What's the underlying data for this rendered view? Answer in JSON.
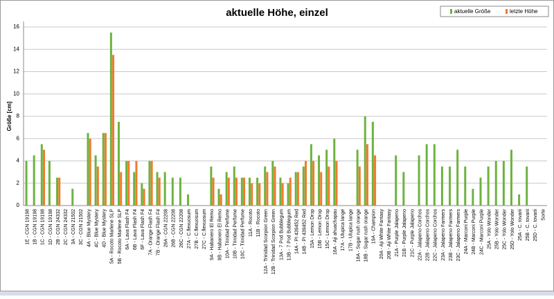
{
  "chart_data": {
    "type": "bar",
    "title": "aktuelle Höhe, einzel",
    "y_label": "Größe [cm]",
    "categories": [
      "1E - CGN 19198",
      "1B - CGN 19198",
      "1C - CGN 19198",
      "1D - CGN 19198",
      "2B - CGN 24332",
      "2C - CGN 24332",
      "3A - CGN 21502",
      "3C - CGN 21502",
      "4A - Blue Mystery",
      "4C - Blue Mystery",
      "4D - Blue Mystery",
      "5A - Rocoto Marlene SLP",
      "5B - Rocoto Marlene SLP",
      "6A - Lava Flash F4",
      "6B - Lava Flash F4",
      "6F - Lava Flash F4",
      "7A - Orange Flash F4",
      "7B - Orange Flash F4",
      "26A - CGN 22208",
      "26B - CGN 22208",
      "26C - CGN 22208",
      "27A - C.flexuosum",
      "27B - C.flexuosum",
      "27C - C.flexuosum",
      "9A - Habanero El Remo",
      "9B - Habanero El Remo",
      "10A - Trinidad Perfume",
      "10B - Trinidad Perfume",
      "10C - Trinidad Perfume",
      "11A - Rocoto",
      "11B - Rocoto",
      "12A - Trinidad Scorpion Green",
      "12B - Trinidad Scorpion Green",
      "13A - 7 Pod Bubblegum",
      "13B - 7 Pod Bubblegum",
      "14A - PI 439452 Red",
      "14B - PI 439452 Red",
      "15A - Lemon Drop",
      "15B - Lemon Drop",
      "15C - Lemon Drop",
      "16A - Aji ahuachapau",
      "17A - Ulupica lange",
      "17B - Ulupica lange",
      "18A - Sugar rush orange",
      "18B - Sugar rush orange",
      "19A - Champion",
      "20A - Aji White Fantasy",
      "20B - Aji White Fantasy",
      "21A - Purple Jalapeno",
      "21B - Purple Jalapeno",
      "21C - Purple Jalapeno",
      "22A - Jalapeno Corchos",
      "22B - Jalapeno Corchos",
      "22C - Jalapeno Corchos",
      "23A - Jalapeno Farmers",
      "23B - Jalapeno Farmers",
      "23C - Jalapeno Farmers",
      "24A - Marconi Purple",
      "24B - Marconi Purple",
      "24C - Marconi Purple",
      "25A - Yolo Wonder",
      "25B - Yolo Wonder",
      "25C - Yolo Wonder",
      "25D - Yolo Wonder",
      "25A - C. tovarii",
      "25B - C. tovarii",
      "25D - C. tovarii",
      "Sorte"
    ],
    "series": [
      {
        "name": "aktuelle Größe",
        "color": "#6cb33f",
        "values": [
          4,
          4.5,
          5.5,
          4,
          2.5,
          null,
          1.5,
          null,
          6.5,
          4.5,
          6.5,
          15.5,
          7.5,
          4,
          3,
          2,
          4,
          3,
          3,
          2.5,
          2.5,
          1,
          null,
          null,
          3.5,
          1.5,
          3,
          3.5,
          2.5,
          2.5,
          2.5,
          3.5,
          4,
          2.5,
          2,
          3,
          3.5,
          5.5,
          4.5,
          5,
          6,
          null,
          null,
          5,
          8,
          7.5,
          null,
          null,
          4.5,
          3,
          null,
          4.5,
          5.5,
          5.5,
          3.5,
          3.5,
          5,
          3.5,
          1.5,
          2.5,
          3.5,
          4,
          4,
          5,
          1,
          3.5,
          null,
          null
        ]
      },
      {
        "name": "letzte Höhe",
        "color": "#f07b2b",
        "values": [
          null,
          null,
          5,
          null,
          2.5,
          null,
          null,
          null,
          6,
          3.5,
          6.5,
          13.5,
          3,
          4,
          4,
          1.5,
          4,
          2.5,
          null,
          null,
          null,
          null,
          null,
          null,
          2.5,
          1,
          2.5,
          2.5,
          2.5,
          2,
          2,
          3,
          3.5,
          2,
          2.5,
          3,
          4,
          4,
          3,
          3.5,
          4,
          null,
          null,
          3.5,
          5.5,
          4.5,
          null,
          null,
          null,
          null,
          null,
          null,
          null,
          null,
          null,
          null,
          null,
          null,
          null,
          null,
          null,
          null,
          null,
          null,
          null,
          null,
          null,
          null
        ]
      }
    ],
    "ylim": [
      0,
      16
    ],
    "yticks": [
      0,
      2,
      4,
      6,
      8,
      10,
      12,
      14,
      16
    ],
    "grid": true,
    "legend": "top-right"
  }
}
